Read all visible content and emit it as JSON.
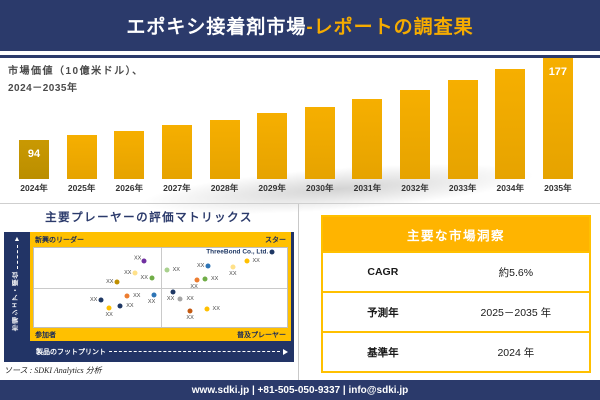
{
  "header": {
    "title_main": "エポキシ接着剤市場",
    "title_accent": "-レポートの調査果"
  },
  "colors": {
    "navy": "#2B3A6B",
    "matrix_navy": "#223466",
    "gold": "#FFC000",
    "table_header_gold": "#FFB400",
    "bar_gold": "#EFA800",
    "bar_first_gold": "#C49400"
  },
  "chart_data": [
    {
      "type": "bar",
      "title": "市場価値（10億米ドル）、2024－2035年",
      "label_line1": "市場価値（10億米ドル）、",
      "label_line2": "2024－2035年",
      "categories": [
        "2024年",
        "2025年",
        "2026年",
        "2027年",
        "2028年",
        "2029年",
        "2030年",
        "2031年",
        "2032年",
        "2033年",
        "2034年",
        "2035年"
      ],
      "values": [
        94,
        99,
        103,
        109,
        114,
        121,
        128,
        136,
        145,
        155,
        166,
        177
      ],
      "label_indices": [
        0,
        11
      ],
      "labeled_points": {
        "2024年": 94,
        "2035年": 177
      },
      "ylim": [
        54,
        180
      ],
      "grid": "off",
      "legend": "none"
    },
    {
      "type": "scatter",
      "title": "主要プレーヤーの評価マトリックス",
      "xlabel": "製品のフットプリント",
      "ylabel": "市場シェア・順位",
      "quadrants": {
        "top_left": "新興のリーダー",
        "top_right": "スター",
        "bottom_left": "参加者",
        "bottom_right": "普及プレーヤー"
      },
      "points": [
        {
          "x": 43.6,
          "y": 16.0,
          "color": "#7030A0",
          "label": "XX",
          "side": "left-above"
        },
        {
          "x": 40.1,
          "y": 31.7,
          "color": "#FFE18A",
          "label": "XX",
          "side": "left"
        },
        {
          "x": 33.0,
          "y": 43.2,
          "color": "#BF8F00",
          "label": "XX",
          "side": "left"
        },
        {
          "x": 46.6,
          "y": 38.6,
          "color": "#70AD47",
          "label": "XX",
          "side": "left"
        },
        {
          "x": 52.4,
          "y": 28.4,
          "color": "#A9D18E",
          "label": "XX",
          "side": "right"
        },
        {
          "x": 68.9,
          "y": 22.2,
          "color": "#2E75B6",
          "label": "XX",
          "side": "left"
        },
        {
          "x": 78.6,
          "y": 24.3,
          "color": "#FFE18A",
          "label": "XX",
          "side": "below"
        },
        {
          "x": 84.0,
          "y": 16.4,
          "color": "#FFC000",
          "label": "XX",
          "side": "right"
        },
        {
          "x": 94.2,
          "y": 5.5,
          "color": "#1F3864",
          "label": "ThreeBond Co., Ltd.",
          "side": "left",
          "company": true
        },
        {
          "x": 64.3,
          "y": 40.7,
          "color": "#ED7D31",
          "label": "XX",
          "side": "below-left"
        },
        {
          "x": 67.6,
          "y": 39.5,
          "color": "#70AD47",
          "label": "XX",
          "side": "right"
        },
        {
          "x": 26.6,
          "y": 66.3,
          "color": "#1F3864",
          "label": "XX",
          "side": "left"
        },
        {
          "x": 36.8,
          "y": 60.5,
          "color": "#ED7D31",
          "label": "XX",
          "side": "right"
        },
        {
          "x": 29.7,
          "y": 75.7,
          "color": "#FFC000",
          "label": "XX",
          "side": "below"
        },
        {
          "x": 34.1,
          "y": 73.7,
          "color": "#1F3864",
          "label": "XX",
          "side": "right"
        },
        {
          "x": 47.5,
          "y": 59.3,
          "color": "#2E75B6",
          "label": "XX",
          "side": "below-left"
        },
        {
          "x": 55.0,
          "y": 55.2,
          "color": "#1F3864",
          "label": "XX",
          "side": "below-left"
        },
        {
          "x": 57.9,
          "y": 64.2,
          "color": "#A6A6A6",
          "label": "XX",
          "side": "right"
        },
        {
          "x": 61.7,
          "y": 79.9,
          "color": "#C55A11",
          "label": "XX",
          "side": "below"
        },
        {
          "x": 68.2,
          "y": 77.8,
          "color": "#FFC000",
          "label": "XX",
          "side": "right"
        }
      ]
    },
    {
      "type": "table",
      "title": "主要な市場洞察",
      "rows": [
        {
          "label": "CAGR",
          "value": "約5.6%"
        },
        {
          "label": "予測年",
          "value": "2025－2035 年"
        },
        {
          "label": "基準年",
          "value": "2024 年"
        }
      ]
    }
  ],
  "left_panel": {
    "source": "ソース : SDKI Analytics 分析"
  },
  "footer": {
    "text": "www.sdki.jp | +81-505-050-9337 | info@sdki.jp"
  }
}
